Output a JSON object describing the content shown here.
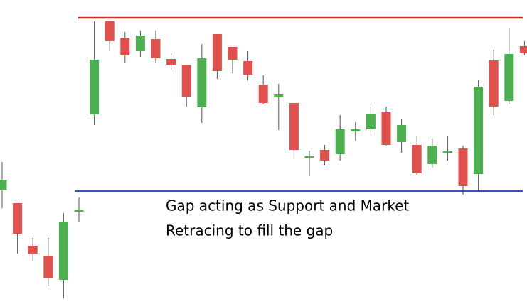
{
  "chart_data": {
    "type": "candlestick",
    "ylim": [
      0,
      428
    ],
    "up_color": "#4caf50",
    "down_color": "#e0504d",
    "levels": [
      {
        "value": 403,
        "color": "#d32f2f"
      },
      {
        "value": 159,
        "color": "#3f51b5"
      }
    ],
    "annotation": [
      "Gap acting as Support and Market",
      "Retracing to fill the gap"
    ],
    "candles": [
      {
        "open": 160,
        "high": 200,
        "low": 135,
        "close": 175
      },
      {
        "open": 142,
        "high": 142,
        "low": 71,
        "close": 99
      },
      {
        "open": 82,
        "high": 93,
        "low": 60,
        "close": 71
      },
      {
        "open": 68,
        "high": 93,
        "low": 25,
        "close": 36
      },
      {
        "open": 34,
        "high": 128,
        "low": 8,
        "close": 116
      },
      {
        "open": 131,
        "high": 150,
        "low": 116,
        "close": 132
      },
      {
        "open": 267,
        "high": 398,
        "low": 252,
        "close": 344
      },
      {
        "open": 398,
        "high": 398,
        "low": 356,
        "close": 370
      },
      {
        "open": 375,
        "high": 383,
        "low": 340,
        "close": 350
      },
      {
        "open": 356,
        "high": 385,
        "low": 348,
        "close": 378
      },
      {
        "open": 373,
        "high": 385,
        "low": 340,
        "close": 346
      },
      {
        "open": 345,
        "high": 353,
        "low": 330,
        "close": 337
      },
      {
        "open": 337,
        "high": 337,
        "low": 278,
        "close": 292
      },
      {
        "open": 277,
        "high": 366,
        "low": 255,
        "close": 346
      },
      {
        "open": 380,
        "high": 380,
        "low": 317,
        "close": 328
      },
      {
        "open": 362,
        "high": 362,
        "low": 325,
        "close": 344
      },
      {
        "open": 342,
        "high": 356,
        "low": 315,
        "close": 323
      },
      {
        "open": 309,
        "high": 322,
        "low": 281,
        "close": 283
      },
      {
        "open": 291,
        "high": 310,
        "low": 245,
        "close": 295
      },
      {
        "open": 283,
        "high": 283,
        "low": 204,
        "close": 217
      },
      {
        "open": 206,
        "high": 216,
        "low": 180,
        "close": 208
      },
      {
        "open": 217,
        "high": 224,
        "low": 195,
        "close": 202
      },
      {
        "open": 211,
        "high": 266,
        "low": 202,
        "close": 246
      },
      {
        "open": 243,
        "high": 256,
        "low": 230,
        "close": 246
      },
      {
        "open": 246,
        "high": 278,
        "low": 238,
        "close": 268
      },
      {
        "open": 270,
        "high": 278,
        "low": 223,
        "close": 224
      },
      {
        "open": 228,
        "high": 260,
        "low": 213,
        "close": 252
      },
      {
        "open": 224,
        "high": 236,
        "low": 182,
        "close": 184
      },
      {
        "open": 197,
        "high": 233,
        "low": 192,
        "close": 223
      },
      {
        "open": 213,
        "high": 236,
        "low": 202,
        "close": 215
      },
      {
        "open": 219,
        "high": 223,
        "low": 154,
        "close": 166
      },
      {
        "open": 183,
        "high": 315,
        "low": 158,
        "close": 306
      },
      {
        "open": 343,
        "high": 358,
        "low": 266,
        "close": 278
      },
      {
        "open": 286,
        "high": 388,
        "low": 281,
        "close": 352
      },
      {
        "open": 363,
        "high": 370,
        "low": 350,
        "close": 353
      }
    ]
  }
}
